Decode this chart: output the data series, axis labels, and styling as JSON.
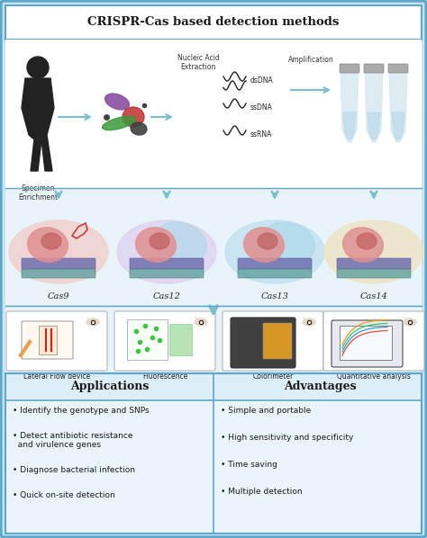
{
  "title": "CRISPR-Cas based detection methods",
  "bg_color": "#cce4f0",
  "outer_border_color": "#5ba8cc",
  "title_fontsize": 9.5,
  "step1_label": "Specimen\nEnrichment",
  "step2_label": "Nucleic Acid\nExtraction",
  "dna_labels": [
    "dsDNA",
    "ssDNA",
    "ssRNA"
  ],
  "amp_label": "Amplification",
  "cas_labels": [
    "Cas9",
    "Cas12",
    "Cas13",
    "Cas14"
  ],
  "detection_labels": [
    "Lateral Flow device",
    "Fluorescence",
    "Colorimeter",
    "Quantitative analysis"
  ],
  "app_header": "Applications",
  "adv_header": "Advantages",
  "app_items": [
    "• Identify the genotype and SNPs",
    "• Detect antibiotic resistance\n  and virulence genes",
    "• Diagnose bacterial infection",
    "• Quick on-site detection"
  ],
  "adv_items": [
    "• Simple and portable",
    "• High sensitivity and specificity",
    "• Time saving",
    "• Multiple detection"
  ],
  "arrow_color": "#7bbfcf",
  "teal_color": "#5ba8cc",
  "white": "#ffffff",
  "dark": "#1a1a1a",
  "section_bg": "#e8f4fa",
  "cas_bg_colors": [
    "#f2cdc8",
    "#dfd0ef",
    "#bfe0ef",
    "#f0e2c0"
  ],
  "det_box_colors": [
    "#f0f0f0",
    "#f0f0f0",
    "#f0f0f0",
    "#f0f0f0"
  ]
}
